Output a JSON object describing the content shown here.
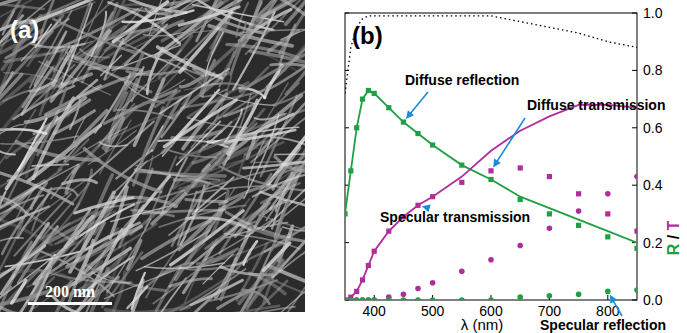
{
  "image_panel": {
    "label": "(a)",
    "scale_bar_label": "200 nm"
  },
  "chart_data": {
    "type": "line",
    "title": "(b)",
    "xlabel": "λ (nm)",
    "ylabel": "R / T",
    "x": [
      350,
      360,
      370,
      380,
      390,
      400,
      425,
      450,
      475,
      500,
      550,
      600,
      650,
      700,
      750,
      800,
      850
    ],
    "xlim": [
      350,
      850
    ],
    "xticks": [
      400,
      500,
      600,
      700,
      800
    ],
    "ylim": [
      0,
      1
    ],
    "yticks": [
      {
        "value": 0,
        "label": "0.0"
      },
      0.2,
      0.4,
      0.6,
      0.8,
      {
        "value": 1,
        "label": "1.0"
      }
    ],
    "grid": false,
    "series": [
      {
        "color": "#000000",
        "line_style": "dotted",
        "marker": "none",
        "values": [
          0.72,
          0.88,
          0.95,
          0.98,
          0.99,
          0.99,
          0.99,
          0.99,
          0.99,
          0.99,
          0.99,
          0.99,
          0.97,
          0.95,
          0.93,
          0.9,
          0.88
        ]
      },
      {
        "color": "#1fa045",
        "line_style": "solid",
        "marker": "none",
        "values": [
          0.3,
          0.45,
          0.6,
          0.7,
          0.73,
          0.72,
          0.67,
          0.62,
          0.58,
          0.54,
          0.47,
          0.42,
          0.36,
          0.32,
          0.28,
          0.24,
          0.2
        ]
      },
      {
        "name": "Diffuse reflection",
        "color": "#1fa045",
        "line_style": "none",
        "marker": "square",
        "values": [
          0.3,
          0.45,
          0.6,
          0.7,
          0.73,
          0.72,
          0.67,
          0.62,
          0.58,
          0.54,
          0.47,
          0.42,
          0.35,
          0.3,
          0.26,
          0.22,
          0.18
        ]
      },
      {
        "name": "Specular transmission",
        "color": "#b02e9c",
        "line_style": "solid",
        "marker": "none",
        "values": [
          0,
          0.01,
          0.03,
          0.07,
          0.12,
          0.17,
          0.24,
          0.29,
          0.33,
          0.36,
          0.43,
          0.52,
          0.59,
          0.64,
          0.68,
          0.68,
          0.67
        ]
      },
      {
        "name": "Diffuse transmission",
        "color": "#b02e9c",
        "line_style": "none",
        "marker": "square",
        "values": [
          0,
          0.01,
          0.03,
          0.07,
          0.12,
          0.17,
          0.24,
          0.29,
          0.33,
          0.36,
          0.41,
          0.45,
          0.46,
          0.43,
          0.37,
          0.3,
          0.24
        ]
      },
      {
        "color": "#b02e9c",
        "line_style": "none",
        "marker": "circle",
        "values": [
          0,
          0,
          0,
          0,
          0,
          0,
          0.01,
          0.02,
          0.04,
          0.06,
          0.1,
          0.14,
          0.19,
          0.25,
          0.31,
          0.37,
          0.43
        ]
      },
      {
        "name": "Specular reflection",
        "color": "#1fa045",
        "line_style": "none",
        "marker": "circle",
        "values": [
          0,
          0,
          0,
          0,
          0,
          0,
          0,
          0,
          0,
          0,
          0,
          0,
          0.01,
          0.015,
          0.02,
          0.03,
          0.035
        ]
      }
    ]
  }
}
